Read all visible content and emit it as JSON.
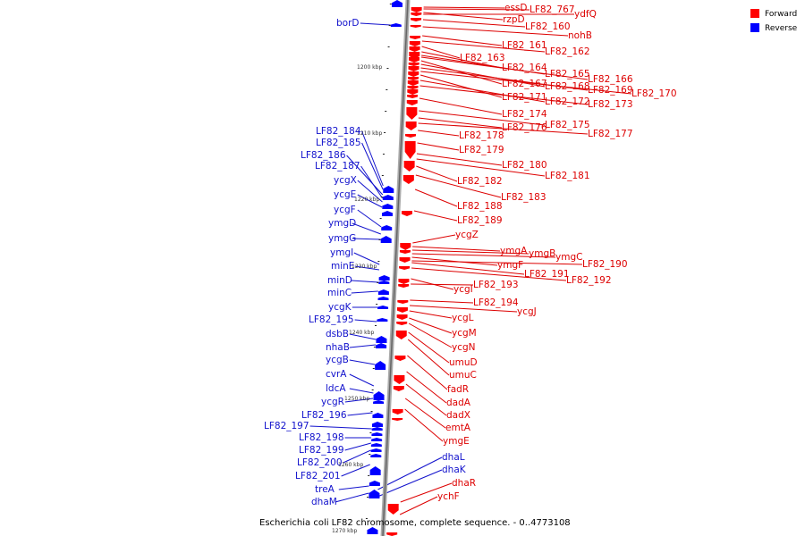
{
  "caption": "Escherichia coli LF82 chromosome, complete sequence. - 0..4773108",
  "legend": [
    {
      "label": "Forward",
      "color": "#ff0000"
    },
    {
      "label": "Reverse",
      "color": "#0000ff"
    }
  ],
  "ticks": [
    "1200 kbp",
    "1210 kbp",
    "1220 kbp",
    "1230 kbp",
    "1240 kbp",
    "1250 kbp",
    "1260 kbp",
    "1270 kbp"
  ],
  "forward_labels": [
    "essD",
    "LF82_767",
    "rzpD",
    "ydfQ",
    "LF82_160",
    "nohB",
    "LF82_161",
    "LF82_162",
    "LF82_163",
    "LF82_164",
    "LF82_165",
    "LF82_166",
    "LF82_167",
    "LF82_168",
    "LF82_169",
    "LF82_170",
    "LF82_171",
    "LF82_172",
    "LF82_173",
    "LF82_174",
    "LF82_175",
    "LF82_176",
    "LF82_177",
    "LF82_178",
    "LF82_179",
    "LF82_180",
    "LF82_181",
    "LF82_182",
    "LF82_183",
    "LF82_188",
    "LF82_189",
    "ycgZ",
    "ymgA",
    "ymgB",
    "ymgC",
    "ymgF",
    "LF82_190",
    "LF82_191",
    "LF82_192",
    "ycgI",
    "LF82_193",
    "LF82_194",
    "ycgJ",
    "ycgL",
    "ycgM",
    "ycgN",
    "umuD",
    "umuC",
    "fadR",
    "dadA",
    "dadX",
    "emtA",
    "ymgE",
    "dhaR",
    "ychF"
  ],
  "reverse_labels": [
    "borD",
    "LF82_184",
    "LF82_185",
    "LF82_186",
    "LF82_187",
    "ycgX",
    "ycgE",
    "ycgF",
    "ymgD",
    "ymgG",
    "ymgI",
    "minE",
    "minD",
    "minC",
    "ycgK",
    "LF82_195",
    "dsbB",
    "nhaB",
    "ycgB",
    "cvrA",
    "ldcA",
    "ycgR",
    "LF82_196",
    "LF82_197",
    "LF82_198",
    "LF82_199",
    "LF82_200",
    "LF82_201",
    "treA",
    "dhaM",
    "dhaL",
    "dhaK"
  ]
}
